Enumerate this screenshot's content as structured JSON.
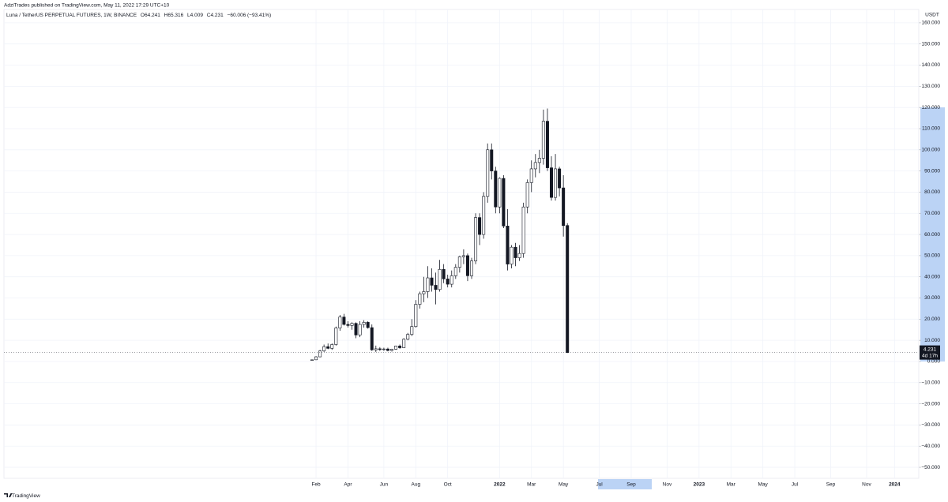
{
  "header": {
    "published": "AdziTrades published on TradingView.com, May 11, 2022 17:29 UTC+10",
    "symbol": "Luna / TetherUS PERPETUAL FUTURES, 1W, BINANCE",
    "ohlc": {
      "open": "O64.241",
      "high": "H65.316",
      "low": "L4.009",
      "close": "C4.231",
      "change": "−60.006 (−93.41%)"
    }
  },
  "footer": {
    "brand": "TradingView"
  },
  "chart_data": {
    "type": "candlestick",
    "currency": "USDT",
    "countdown": "4d 17h",
    "up_color": "#ffffff",
    "down_color": "#131722",
    "border_color": "#131722",
    "grid": true,
    "ylim": [
      -55.2,
      166.3
    ],
    "yticks": [
      {
        "value": 160,
        "label": "160.000"
      },
      {
        "value": 150,
        "label": "150.000"
      },
      {
        "value": 140,
        "label": "140.000"
      },
      {
        "value": 130,
        "label": "130.000"
      },
      {
        "value": 120,
        "label": "120.000"
      },
      {
        "value": 110,
        "label": "110.000"
      },
      {
        "value": 100,
        "label": "100.000"
      },
      {
        "value": 90,
        "label": "90.000"
      },
      {
        "value": 80,
        "label": "80.000"
      },
      {
        "value": 70,
        "label": "70.000"
      },
      {
        "value": 60,
        "label": "60.000"
      },
      {
        "value": 50,
        "label": "50.000"
      },
      {
        "value": 40,
        "label": "40.000"
      },
      {
        "value": 30,
        "label": "30.000"
      },
      {
        "value": 20,
        "label": "20.000"
      },
      {
        "value": 10,
        "label": "10.000"
      },
      {
        "value": 0,
        "label": "0.000"
      },
      {
        "value": -10,
        "label": "−10.000"
      },
      {
        "value": -20,
        "label": "−20.000"
      },
      {
        "value": -30,
        "label": "−30.000"
      },
      {
        "value": -40,
        "label": "−40.000"
      },
      {
        "value": -50,
        "label": "−50.000"
      }
    ],
    "categories": [
      null,
      "Feb",
      null,
      null,
      null,
      null,
      null,
      null,
      null,
      "Apr",
      null,
      null,
      null,
      null,
      null,
      null,
      null,
      null,
      "Jun",
      null,
      null,
      null,
      null,
      null,
      null,
      null,
      "Aug",
      null,
      null,
      null,
      null,
      null,
      null,
      null,
      "Oct",
      null,
      null,
      null,
      null,
      null,
      null,
      null,
      null,
      null,
      null,
      null,
      null,
      "2022",
      null,
      null,
      null,
      null,
      null,
      null,
      null,
      "Mar",
      null,
      null,
      null,
      null,
      null,
      null,
      null,
      "May",
      null,
      null,
      null,
      null,
      null,
      null,
      null,
      null,
      "Jul",
      null,
      null,
      null,
      null,
      null,
      null,
      null,
      "Sep",
      null,
      null,
      null,
      null,
      null,
      null,
      null,
      null,
      "Nov",
      null,
      null,
      null,
      null,
      null,
      null,
      null,
      "2023",
      null,
      null,
      null,
      null,
      null,
      null,
      null,
      "Mar",
      null,
      null,
      null,
      null,
      null,
      null,
      null,
      "May",
      null,
      null,
      null,
      null,
      null,
      null,
      null,
      "Jul",
      null,
      null,
      null,
      null,
      null,
      null,
      null,
      null,
      "Sep",
      null,
      null,
      null,
      null,
      null,
      null,
      null,
      null,
      "Nov",
      null,
      null,
      null,
      null,
      null,
      null,
      "2024",
      null,
      null,
      null,
      null,
      null
    ],
    "open": [
      0.6,
      0.8,
      2.2,
      5.0,
      7.0,
      6.2,
      8.0,
      15.8,
      21.0,
      17.5,
      17.0,
      18.0,
      12.5,
      17.5,
      18.5,
      16.0,
      5.5,
      6.0,
      5.6,
      5.9,
      5.2,
      5.8,
      7.3,
      6.5,
      10.5,
      12.8,
      16.5,
      27.0,
      32.0,
      33.0,
      39.5,
      36.0,
      34.0,
      43.5,
      39.0,
      36.5,
      40.5,
      44.5,
      49.5,
      50.0,
      40.5,
      47.5,
      68.0,
      60.0,
      78.0,
      100.0,
      90.0,
      73.0,
      86.5,
      64.0,
      46.0,
      54.0,
      49.0,
      51.0,
      73.0,
      84.5,
      91.0,
      94.0,
      96.0,
      113.5,
      91.5,
      77.5,
      91.0,
      82.0,
      64.241,
      null,
      null,
      null,
      null,
      null,
      null,
      null,
      null,
      null,
      null,
      null,
      null,
      null,
      null,
      null,
      null,
      null,
      null,
      null,
      null,
      null,
      null,
      null,
      null,
      null,
      null,
      null,
      null,
      null,
      null,
      null,
      null,
      null,
      null,
      null,
      null,
      null,
      null,
      null,
      null,
      null,
      null,
      null,
      null,
      null,
      null,
      null,
      null,
      null,
      null,
      null,
      null,
      null,
      null,
      null,
      null,
      null,
      null,
      null,
      null,
      null,
      null,
      null,
      null,
      null,
      null,
      null,
      null,
      null,
      null,
      null,
      null,
      null,
      null,
      null,
      null,
      null,
      null,
      null,
      null,
      null,
      null,
      null,
      null,
      null,
      null,
      null
    ],
    "high": [
      0.9,
      2.5,
      5.5,
      8.0,
      8.5,
      8.5,
      16.5,
      22.0,
      22.5,
      19.0,
      18.5,
      18.5,
      19.0,
      19.5,
      19.0,
      17.5,
      7.5,
      6.8,
      6.5,
      6.5,
      6.0,
      7.5,
      8.0,
      11.0,
      13.5,
      20.0,
      29.0,
      33.0,
      40.0,
      45.0,
      44.0,
      42.0,
      48.0,
      46.0,
      41.0,
      43.0,
      46.0,
      50.0,
      53.0,
      51.0,
      49.0,
      70.0,
      70.0,
      80.0,
      103.0,
      103.0,
      92.0,
      87.0,
      88.0,
      72.0,
      55.0,
      56.0,
      55.0,
      75.0,
      86.0,
      95.0,
      98.0,
      100.0,
      119.0,
      119.5,
      97.0,
      98.0,
      92.0,
      88.0,
      65.316,
      null,
      null,
      null,
      null,
      null,
      null,
      null,
      null,
      null,
      null,
      null,
      null,
      null,
      null,
      null,
      null,
      null,
      null,
      null,
      null,
      null,
      null,
      null,
      null,
      null,
      null,
      null,
      null,
      null,
      null,
      null,
      null,
      null,
      null,
      null,
      null,
      null,
      null,
      null,
      null,
      null,
      null,
      null,
      null,
      null,
      null,
      null,
      null,
      null,
      null,
      null,
      null,
      null,
      null,
      null,
      null,
      null,
      null,
      null,
      null,
      null,
      null,
      null,
      null,
      null,
      null,
      null,
      null,
      null,
      null,
      null,
      null,
      null,
      null,
      null,
      null,
      null,
      null,
      null,
      null,
      null,
      null,
      null,
      null,
      null,
      null,
      null
    ],
    "low": [
      0.5,
      0.7,
      2.0,
      4.5,
      5.8,
      5.5,
      7.5,
      14.5,
      17.0,
      16.0,
      15.0,
      11.0,
      11.5,
      16.0,
      15.5,
      5.0,
      4.5,
      5.0,
      5.0,
      4.8,
      4.7,
      5.5,
      6.0,
      6.3,
      10.0,
      12.0,
      16.0,
      25.0,
      28.0,
      30.0,
      33.0,
      27.0,
      33.0,
      37.0,
      35.0,
      35.0,
      39.0,
      42.0,
      46.0,
      38.0,
      39.0,
      46.0,
      55.0,
      58.0,
      75.0,
      86.0,
      70.0,
      70.0,
      63.0,
      43.0,
      44.0,
      45.0,
      47.5,
      49.0,
      70.0,
      80.0,
      87.0,
      89.0,
      93.0,
      90.0,
      76.0,
      76.0,
      78.0,
      59.0,
      4.009,
      null,
      null,
      null,
      null,
      null,
      null,
      null,
      null,
      null,
      null,
      null,
      null,
      null,
      null,
      null,
      null,
      null,
      null,
      null,
      null,
      null,
      null,
      null,
      null,
      null,
      null,
      null,
      null,
      null,
      null,
      null,
      null,
      null,
      null,
      null,
      null,
      null,
      null,
      null,
      null,
      null,
      null,
      null,
      null,
      null,
      null,
      null,
      null,
      null,
      null,
      null,
      null,
      null,
      null,
      null,
      null,
      null,
      null,
      null,
      null,
      null,
      null,
      null,
      null,
      null,
      null,
      null,
      null,
      null,
      null,
      null,
      null,
      null,
      null,
      null,
      null,
      null,
      null,
      null,
      null,
      null,
      null,
      null,
      null,
      null,
      null,
      null
    ],
    "close": [
      0.8,
      2.2,
      5.0,
      7.0,
      6.2,
      8.0,
      15.8,
      21.0,
      17.5,
      17.0,
      18.0,
      12.5,
      17.5,
      18.5,
      16.0,
      5.5,
      6.0,
      5.6,
      5.9,
      5.2,
      5.8,
      7.3,
      6.5,
      10.5,
      12.8,
      16.5,
      27.0,
      32.0,
      33.0,
      39.5,
      36.0,
      34.0,
      43.5,
      39.0,
      36.5,
      40.5,
      44.5,
      49.5,
      50.0,
      40.5,
      47.5,
      68.0,
      60.0,
      78.0,
      100.0,
      90.0,
      73.0,
      86.5,
      64.0,
      46.0,
      54.0,
      49.0,
      51.0,
      73.0,
      84.5,
      91.0,
      94.0,
      96.0,
      113.5,
      91.5,
      77.5,
      91.0,
      82.0,
      64.2,
      4.231,
      null,
      null,
      null,
      null,
      null,
      null,
      null,
      null,
      null,
      null,
      null,
      null,
      null,
      null,
      null,
      null,
      null,
      null,
      null,
      null,
      null,
      null,
      null,
      null,
      null,
      null,
      null,
      null,
      null,
      null,
      null,
      null,
      null,
      null,
      null,
      null,
      null,
      null,
      null,
      null,
      null,
      null,
      null,
      null,
      null,
      null,
      null,
      null,
      null,
      null,
      null,
      null,
      null,
      null,
      null,
      null,
      null,
      null,
      null,
      null,
      null,
      null,
      null,
      null,
      null,
      null,
      null,
      null,
      null,
      null,
      null,
      null,
      null,
      null,
      null,
      null,
      null,
      null,
      null,
      null,
      null,
      null,
      null,
      null,
      null,
      null,
      null
    ]
  }
}
